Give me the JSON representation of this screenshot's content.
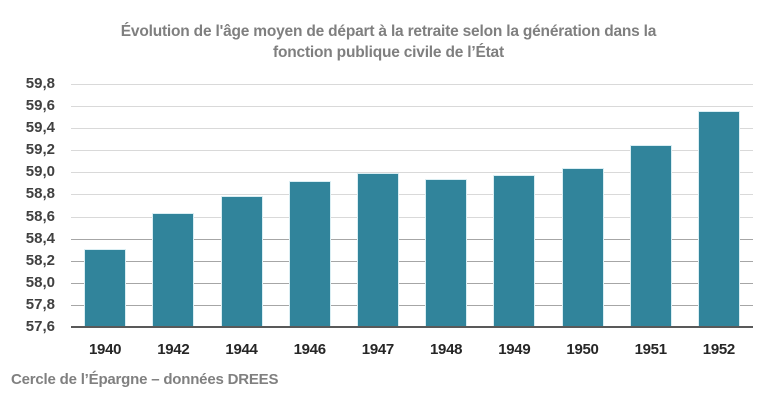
{
  "title_lines": [
    "Évolution de l'âge moyen de départ à la retraite selon la génération dans la",
    "fonction publique civile de l’État"
  ],
  "source": "Cercle de l’Épargne – données DREES",
  "colors": {
    "bar": "#31849b",
    "bar_border": "#daeef3",
    "title": "#7f7f7f",
    "axis": "#595959",
    "grid": "#d9d9d9"
  },
  "chart_data": {
    "type": "bar",
    "title": "Évolution de l'âge moyen de départ à la retraite selon la génération dans la fonction publique civile de l’État",
    "xlabel": "",
    "ylabel": "",
    "categories": [
      "1940",
      "1942",
      "1944",
      "1946",
      "1947",
      "1948",
      "1949",
      "1950",
      "1951",
      "1952"
    ],
    "values": [
      58.31,
      58.63,
      58.79,
      58.92,
      58.99,
      58.94,
      58.98,
      59.04,
      59.25,
      59.56
    ],
    "ylim": [
      57.6,
      59.8
    ],
    "yticks": [
      "57,6",
      "57,8",
      "58,0",
      "58,2",
      "58,4",
      "58,6",
      "58,8",
      "59,0",
      "59,2",
      "59,4",
      "59,6",
      "59,8"
    ],
    "grid": true,
    "legend": null,
    "annotations": [
      "Cercle de l’Épargne – données DREES"
    ]
  }
}
